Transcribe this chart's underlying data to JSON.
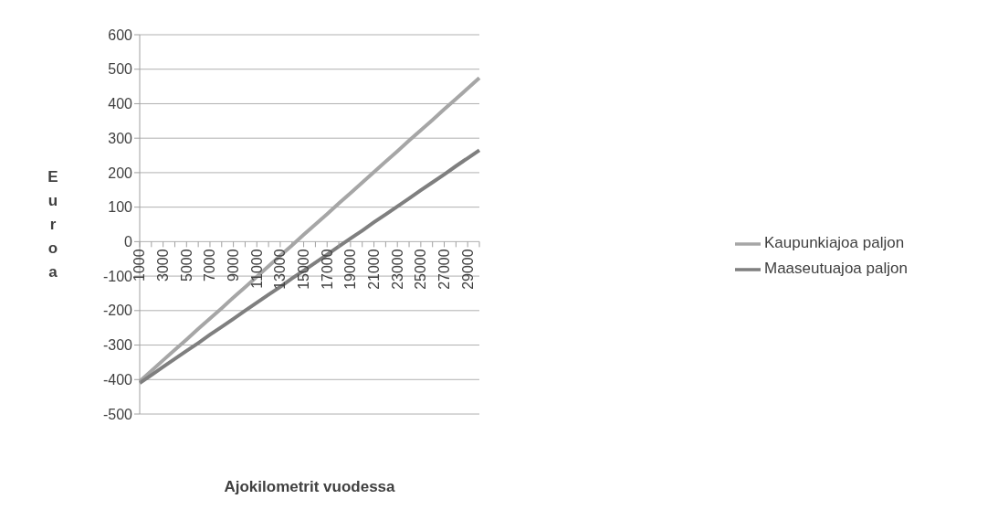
{
  "chart_data": {
    "type": "line",
    "xlabel": "Ajokilometrit vuodessa",
    "ylabel": "Euroa",
    "categories": [
      "1000",
      null,
      "3000",
      null,
      "5000",
      null,
      "7000",
      null,
      "9000",
      null,
      "11000",
      null,
      "13000",
      null,
      "15000",
      null,
      "17000",
      null,
      "19000",
      null,
      "21000",
      null,
      "23000",
      null,
      "25000",
      null,
      "27000",
      null,
      "29000",
      null
    ],
    "series": [
      {
        "name": "Kaupunkiajoa paljon",
        "color": "#a6a6a6",
        "values": [
          -405,
          -375,
          -344,
          -314,
          -284,
          -253,
          -223,
          -193,
          -162,
          -132,
          -102,
          -71,
          -41,
          -11,
          20,
          50,
          80,
          111,
          141,
          171,
          202,
          232,
          262,
          293,
          323,
          353,
          384,
          414,
          444,
          475
        ]
      },
      {
        "name": "Maaseutuajoa paljon",
        "color": "#7f7f7f",
        "values": [
          -410,
          -387,
          -363,
          -340,
          -317,
          -294,
          -270,
          -247,
          -224,
          -200,
          -177,
          -154,
          -131,
          -107,
          -84,
          -61,
          -38,
          -14,
          9,
          32,
          56,
          79,
          102,
          125,
          149,
          172,
          195,
          219,
          242,
          265
        ]
      }
    ],
    "ylim": [
      -500,
      600
    ],
    "yticks": [
      -500,
      -400,
      -300,
      -200,
      -100,
      0,
      100,
      200,
      300,
      400,
      500,
      600
    ],
    "grid": "y",
    "legend": "right",
    "marker": "none",
    "line_style": "solid"
  }
}
